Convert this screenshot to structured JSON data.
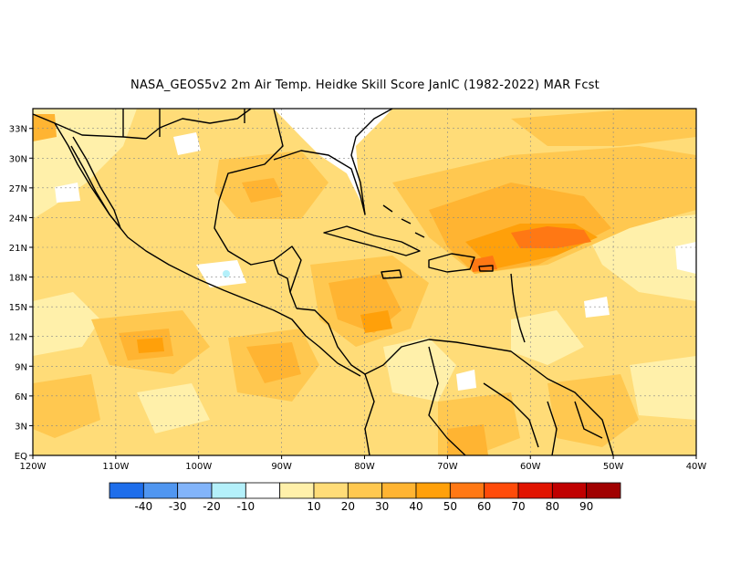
{
  "title": "NASA_GEOS5v2  2m Air Temp. Heidke Skill Score JanIC (1982-2022) MAR Fcst",
  "map": {
    "lon_range": [
      -120,
      -40
    ],
    "lat_range": [
      0,
      35
    ],
    "lat_ticks": [
      {
        "value": 0,
        "label": "EQ"
      },
      {
        "value": 3,
        "label": "3N"
      },
      {
        "value": 6,
        "label": "6N"
      },
      {
        "value": 9,
        "label": "9N"
      },
      {
        "value": 12,
        "label": "12N"
      },
      {
        "value": 15,
        "label": "15N"
      },
      {
        "value": 18,
        "label": "18N"
      },
      {
        "value": 21,
        "label": "21N"
      },
      {
        "value": 24,
        "label": "24N"
      },
      {
        "value": 27,
        "label": "27N"
      },
      {
        "value": 30,
        "label": "30N"
      },
      {
        "value": 33,
        "label": "33N"
      }
    ],
    "lon_ticks": [
      {
        "value": -120,
        "label": "120W"
      },
      {
        "value": -110,
        "label": "110W"
      },
      {
        "value": -100,
        "label": "100W"
      },
      {
        "value": -90,
        "label": "90W"
      },
      {
        "value": -80,
        "label": "80W"
      },
      {
        "value": -70,
        "label": "70W"
      },
      {
        "value": -60,
        "label": "60W"
      },
      {
        "value": -50,
        "label": "50W"
      },
      {
        "value": -40,
        "label": "40W"
      }
    ]
  },
  "colorbar": {
    "colors": [
      "#1e6eeb",
      "#5096f0",
      "#82b4fa",
      "#b4f0fa",
      "#ffffff",
      "#fff0aa",
      "#ffdc78",
      "#ffc850",
      "#ffb432",
      "#ffa00a",
      "#ff7814",
      "#ff4b0a",
      "#e11400",
      "#c00000",
      "#a00000"
    ],
    "labels": [
      "-40",
      "-30",
      "-20",
      "-10",
      "10",
      "20",
      "30",
      "40",
      "50",
      "60",
      "70",
      "80",
      "90"
    ]
  }
}
